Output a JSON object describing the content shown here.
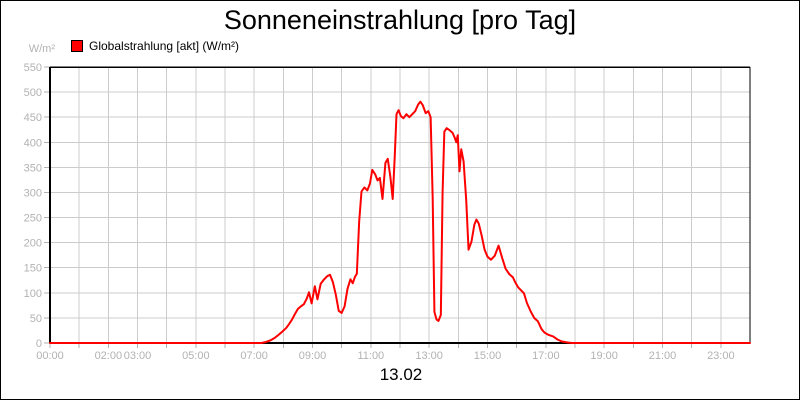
{
  "title": "Sonneneinstrahlung [pro Tag]",
  "legend": {
    "label": "Globalstrahlung [akt] (W/m²)",
    "marker_color": "#ff0000"
  },
  "y_axis": {
    "unit": "W/m²",
    "min": 0,
    "max": 550,
    "step": 50,
    "tick_labels": [
      "0",
      "50",
      "100",
      "150",
      "200",
      "250",
      "300",
      "350",
      "400",
      "450",
      "500",
      "550"
    ]
  },
  "x_axis": {
    "hours_total": 24,
    "date_label": "13.02",
    "labeled_ticks": [
      {
        "hour": 0,
        "label": "00:00"
      },
      {
        "hour": 2,
        "label": "02:00"
      },
      {
        "hour": 3,
        "label": "03:00"
      },
      {
        "hour": 5,
        "label": "05:00"
      },
      {
        "hour": 7,
        "label": "07:00"
      },
      {
        "hour": 9,
        "label": "09:00"
      },
      {
        "hour": 11,
        "label": "11:00"
      },
      {
        "hour": 13,
        "label": "13:00"
      },
      {
        "hour": 15,
        "label": "15:00"
      },
      {
        "hour": 17,
        "label": "17:00"
      },
      {
        "hour": 19,
        "label": "19:00"
      },
      {
        "hour": 21,
        "label": "21:00"
      },
      {
        "hour": 23,
        "label": "23:00"
      }
    ]
  },
  "colors": {
    "line": "#ff0000",
    "grid": "#cccccc",
    "tick": "#b2b2b2",
    "axis": "#000000",
    "background": "#ffffff"
  },
  "chart_data": {
    "type": "line",
    "title": "Sonneneinstrahlung [pro Tag]",
    "xlabel": "13.02",
    "ylabel": "W/m²",
    "xlim": [
      0,
      24
    ],
    "ylim": [
      0,
      550
    ],
    "grid": true,
    "legend_position": "top-left",
    "series": [
      {
        "name": "Globalstrahlung [akt] (W/m²)",
        "color": "#ff0000",
        "x_unit": "hours",
        "y_unit": "W/m²",
        "points": [
          [
            0,
            0
          ],
          [
            0.5,
            0
          ],
          [
            1,
            0
          ],
          [
            1.5,
            0
          ],
          [
            2,
            0
          ],
          [
            2.5,
            0
          ],
          [
            3,
            0
          ],
          [
            3.5,
            0
          ],
          [
            4,
            0
          ],
          [
            4.5,
            0
          ],
          [
            5,
            0
          ],
          [
            5.5,
            0
          ],
          [
            6,
            0
          ],
          [
            6.5,
            0
          ],
          [
            7,
            0
          ],
          [
            7.25,
            0
          ],
          [
            7.4,
            2
          ],
          [
            7.55,
            5
          ],
          [
            7.7,
            10
          ],
          [
            7.85,
            17
          ],
          [
            7.95,
            22
          ],
          [
            8.1,
            30
          ],
          [
            8.2,
            38
          ],
          [
            8.3,
            47
          ],
          [
            8.4,
            58
          ],
          [
            8.5,
            68
          ],
          [
            8.6,
            73
          ],
          [
            8.7,
            77
          ],
          [
            8.8,
            88
          ],
          [
            8.88,
            101
          ],
          [
            8.97,
            79
          ],
          [
            9.08,
            113
          ],
          [
            9.17,
            87
          ],
          [
            9.28,
            118
          ],
          [
            9.4,
            127
          ],
          [
            9.5,
            133
          ],
          [
            9.6,
            136
          ],
          [
            9.7,
            121
          ],
          [
            9.8,
            96
          ],
          [
            9.9,
            64
          ],
          [
            10,
            60
          ],
          [
            10.1,
            73
          ],
          [
            10.2,
            108
          ],
          [
            10.3,
            127
          ],
          [
            10.38,
            119
          ],
          [
            10.45,
            131
          ],
          [
            10.52,
            138
          ],
          [
            10.6,
            242
          ],
          [
            10.68,
            302
          ],
          [
            10.78,
            310
          ],
          [
            10.88,
            304
          ],
          [
            10.97,
            318
          ],
          [
            11.05,
            345
          ],
          [
            11.15,
            336
          ],
          [
            11.23,
            324
          ],
          [
            11.31,
            329
          ],
          [
            11.4,
            287
          ],
          [
            11.5,
            359
          ],
          [
            11.58,
            367
          ],
          [
            11.67,
            331
          ],
          [
            11.75,
            287
          ],
          [
            11.82,
            372
          ],
          [
            11.88,
            456
          ],
          [
            11.95,
            464
          ],
          [
            12.03,
            452
          ],
          [
            12.12,
            448
          ],
          [
            12.22,
            456
          ],
          [
            12.32,
            450
          ],
          [
            12.42,
            456
          ],
          [
            12.52,
            462
          ],
          [
            12.62,
            475
          ],
          [
            12.7,
            481
          ],
          [
            12.78,
            474
          ],
          [
            12.88,
            458
          ],
          [
            12.97,
            462
          ],
          [
            13.05,
            450
          ],
          [
            13.12,
            290
          ],
          [
            13.18,
            62
          ],
          [
            13.25,
            47
          ],
          [
            13.32,
            44
          ],
          [
            13.4,
            56
          ],
          [
            13.46,
            300
          ],
          [
            13.52,
            421
          ],
          [
            13.6,
            428
          ],
          [
            13.7,
            424
          ],
          [
            13.8,
            419
          ],
          [
            13.87,
            410
          ],
          [
            13.93,
            400
          ],
          [
            13.98,
            414
          ],
          [
            14.04,
            342
          ],
          [
            14.1,
            386
          ],
          [
            14.18,
            362
          ],
          [
            14.27,
            285
          ],
          [
            14.35,
            186
          ],
          [
            14.45,
            202
          ],
          [
            14.55,
            236
          ],
          [
            14.62,
            246
          ],
          [
            14.7,
            238
          ],
          [
            14.8,
            214
          ],
          [
            14.9,
            186
          ],
          [
            15,
            172
          ],
          [
            15.12,
            166
          ],
          [
            15.25,
            174
          ],
          [
            15.38,
            194
          ],
          [
            15.5,
            170
          ],
          [
            15.62,
            148
          ],
          [
            15.75,
            137
          ],
          [
            15.87,
            131
          ],
          [
            15.95,
            121
          ],
          [
            16.05,
            111
          ],
          [
            16.15,
            105
          ],
          [
            16.25,
            99
          ],
          [
            16.35,
            80
          ],
          [
            16.48,
            63
          ],
          [
            16.6,
            50
          ],
          [
            16.73,
            43
          ],
          [
            16.85,
            28
          ],
          [
            16.95,
            21
          ],
          [
            17.1,
            16
          ],
          [
            17.25,
            13
          ],
          [
            17.4,
            7
          ],
          [
            17.55,
            3
          ],
          [
            17.75,
            1
          ],
          [
            17.9,
            0
          ],
          [
            18.25,
            0
          ],
          [
            18.75,
            0
          ],
          [
            19.25,
            0
          ],
          [
            19.75,
            0
          ],
          [
            20.25,
            0
          ],
          [
            20.75,
            0
          ],
          [
            21.25,
            0
          ],
          [
            21.75,
            0
          ],
          [
            22.25,
            0
          ],
          [
            22.75,
            0
          ],
          [
            23.25,
            0
          ],
          [
            23.75,
            0
          ],
          [
            24,
            0
          ]
        ]
      }
    ]
  }
}
